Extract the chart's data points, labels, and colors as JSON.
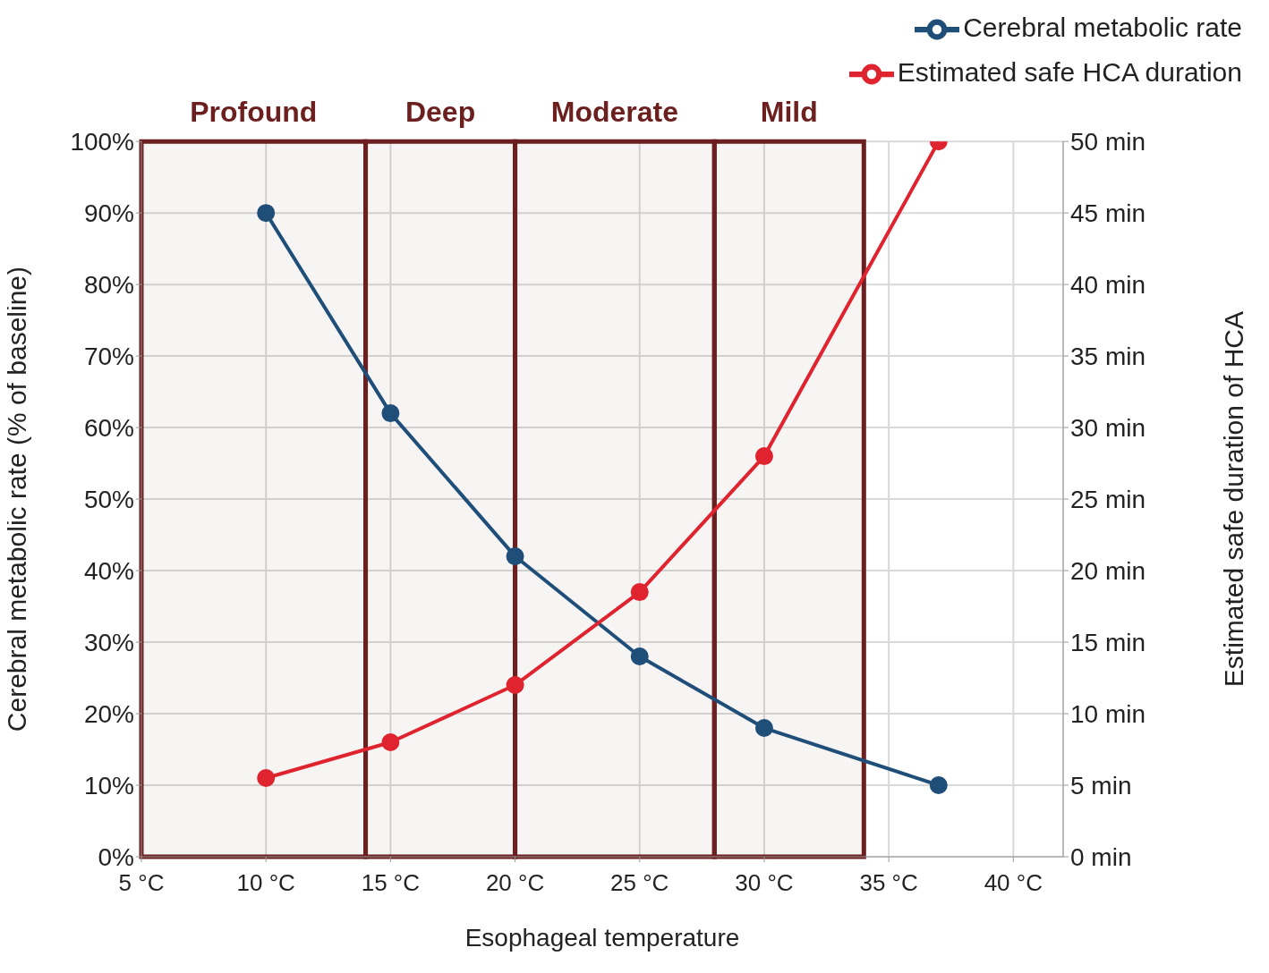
{
  "chart_data": {
    "type": "line",
    "xlabel": "Esophageal temperature",
    "ylabel": "Cerebral metabolic rate (% of baseline)",
    "y2label": "Estimated safe duration of HCA",
    "x": [
      10,
      15,
      20,
      25,
      30,
      37
    ],
    "series": [
      {
        "name": "Cerebral metabolic rate",
        "color": "#1f4e79",
        "values": [
          90,
          62,
          42,
          28,
          18,
          10
        ]
      },
      {
        "name": "Estimated safe HCA duration",
        "color": "#e0242f",
        "axis": "y2",
        "values": [
          5.5,
          8,
          12,
          18.5,
          28,
          50
        ]
      }
    ],
    "xlim": [
      5,
      42
    ],
    "xticks": [
      {
        "value": 5,
        "label": "5 °C"
      },
      {
        "value": 10,
        "label": "10 °C"
      },
      {
        "value": 15,
        "label": "15 °C"
      },
      {
        "value": 20,
        "label": "20 °C"
      },
      {
        "value": 25,
        "label": "25 °C"
      },
      {
        "value": 30,
        "label": "30 °C"
      },
      {
        "value": 35,
        "label": "35 °C"
      },
      {
        "value": 40,
        "label": "40 °C"
      }
    ],
    "ylim": [
      0,
      100
    ],
    "yticks": [
      {
        "value": 0,
        "label": "0%"
      },
      {
        "value": 10,
        "label": "10%"
      },
      {
        "value": 20,
        "label": "20%"
      },
      {
        "value": 30,
        "label": "30%"
      },
      {
        "value": 40,
        "label": "40%"
      },
      {
        "value": 50,
        "label": "50%"
      },
      {
        "value": 60,
        "label": "60%"
      },
      {
        "value": 70,
        "label": "70%"
      },
      {
        "value": 80,
        "label": "80%"
      },
      {
        "value": 90,
        "label": "90%"
      },
      {
        "value": 100,
        "label": "100%"
      }
    ],
    "y2lim": [
      0,
      50
    ],
    "y2ticks": [
      {
        "value": 0,
        "label": "0 min"
      },
      {
        "value": 5,
        "label": "5 min"
      },
      {
        "value": 10,
        "label": "10 min"
      },
      {
        "value": 15,
        "label": "15 min"
      },
      {
        "value": 20,
        "label": "20 min"
      },
      {
        "value": 25,
        "label": "25 min"
      },
      {
        "value": 30,
        "label": "30 min"
      },
      {
        "value": 35,
        "label": "35 min"
      },
      {
        "value": 40,
        "label": "40 min"
      },
      {
        "value": 45,
        "label": "45 min"
      },
      {
        "value": 50,
        "label": "50 min"
      }
    ],
    "bands": [
      {
        "axis": "x",
        "from": 5,
        "to": 14,
        "label": "Profound",
        "color": "#6b1f1f"
      },
      {
        "axis": "x",
        "from": 14,
        "to": 20,
        "label": "Deep",
        "color": "#6b1f1f"
      },
      {
        "axis": "x",
        "from": 20,
        "to": 28,
        "label": "Moderate",
        "color": "#6b1f1f"
      },
      {
        "axis": "x",
        "from": 28,
        "to": 34,
        "label": "Mild",
        "color": "#6b1f1f"
      }
    ],
    "grid": true,
    "legend": "top right",
    "marker": "circle",
    "line_style": "solid"
  }
}
